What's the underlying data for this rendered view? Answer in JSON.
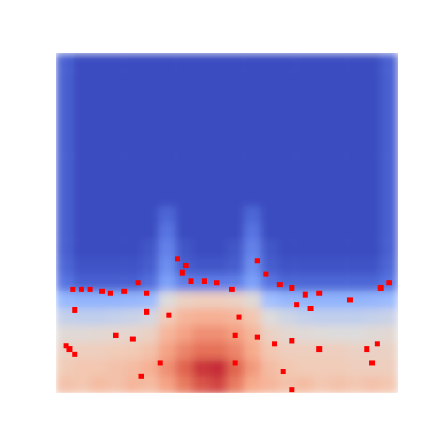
{
  "chart_data": {
    "type": "heatmap",
    "tick_labels": false,
    "xlim": [
      0,
      20
    ],
    "ylim": [
      0,
      20
    ],
    "zlim": [
      0,
      1
    ],
    "cells": [
      [
        0.06,
        0,
        0,
        0,
        0,
        0,
        0,
        0,
        0,
        0,
        0,
        0,
        0,
        0,
        0,
        0,
        0,
        0,
        0,
        0.06
      ],
      [
        0.06,
        0,
        0,
        0,
        0,
        0,
        0,
        0,
        0,
        0,
        0,
        0,
        0,
        0,
        0,
        0,
        0,
        0,
        0,
        0.06
      ],
      [
        0.06,
        0,
        0,
        0,
        0,
        0,
        0,
        0,
        0,
        0,
        0,
        0,
        0,
        0,
        0,
        0,
        0,
        0,
        0,
        0.06
      ],
      [
        0.06,
        0,
        0,
        0,
        0,
        0,
        0,
        0,
        0,
        0,
        0,
        0,
        0,
        0,
        0,
        0,
        0,
        0,
        0,
        0.06
      ],
      [
        0.06,
        0,
        0,
        0,
        0,
        0,
        0,
        0,
        0,
        0,
        0,
        0,
        0,
        0,
        0,
        0,
        0,
        0,
        0,
        0.06
      ],
      [
        0.06,
        0,
        0,
        0,
        0,
        0,
        0,
        0,
        0,
        0,
        0,
        0,
        0,
        0,
        0,
        0,
        0,
        0,
        0,
        0.06
      ],
      [
        0.06,
        0,
        0,
        0,
        0,
        0,
        0,
        0,
        0,
        0,
        0,
        0,
        0,
        0,
        0,
        0,
        0,
        0,
        0,
        0.06
      ],
      [
        0.06,
        0,
        0,
        0,
        0,
        0,
        0,
        0,
        0,
        0,
        0,
        0,
        0,
        0,
        0,
        0,
        0,
        0,
        0,
        0.06
      ],
      [
        0.06,
        0,
        0,
        0,
        0,
        0,
        0,
        0,
        0,
        0,
        0,
        0,
        0,
        0,
        0,
        0,
        0,
        0,
        0,
        0.06
      ],
      [
        0.06,
        0,
        0,
        0,
        0,
        0,
        0.08,
        0,
        0,
        0,
        0,
        0.08,
        0,
        0,
        0,
        0,
        0,
        0,
        0,
        0.06
      ],
      [
        0.06,
        0,
        0,
        0,
        0,
        0,
        0.12,
        0,
        0,
        0,
        0,
        0.12,
        0,
        0,
        0,
        0,
        0,
        0,
        0,
        0.06
      ],
      [
        0.06,
        0,
        0,
        0,
        0,
        0.03,
        0.16,
        0.03,
        0,
        0,
        0.03,
        0.16,
        0.03,
        0,
        0,
        0,
        0,
        0,
        0,
        0.06
      ],
      [
        0.08,
        0.02,
        0.02,
        0.02,
        0.02,
        0.05,
        0.2,
        0.05,
        0.03,
        0.03,
        0.05,
        0.2,
        0.05,
        0.02,
        0.02,
        0.02,
        0.02,
        0.02,
        0.02,
        0.08
      ],
      [
        0.12,
        0.06,
        0.06,
        0.06,
        0.06,
        0.1,
        0.26,
        0.15,
        0.14,
        0.14,
        0.15,
        0.26,
        0.12,
        0.08,
        0.08,
        0.08,
        0.08,
        0.08,
        0.08,
        0.12
      ],
      [
        0.35,
        0.33,
        0.33,
        0.33,
        0.34,
        0.36,
        0.5,
        0.58,
        0.6,
        0.6,
        0.58,
        0.52,
        0.38,
        0.34,
        0.33,
        0.33,
        0.33,
        0.33,
        0.34,
        0.36
      ],
      [
        0.45,
        0.44,
        0.44,
        0.45,
        0.46,
        0.48,
        0.62,
        0.7,
        0.72,
        0.72,
        0.7,
        0.64,
        0.5,
        0.47,
        0.45,
        0.44,
        0.44,
        0.44,
        0.45,
        0.46
      ],
      [
        0.52,
        0.52,
        0.53,
        0.54,
        0.55,
        0.58,
        0.7,
        0.76,
        0.8,
        0.8,
        0.77,
        0.7,
        0.58,
        0.54,
        0.52,
        0.51,
        0.5,
        0.5,
        0.52,
        0.53
      ],
      [
        0.58,
        0.6,
        0.6,
        0.62,
        0.63,
        0.66,
        0.76,
        0.82,
        0.86,
        0.86,
        0.82,
        0.74,
        0.64,
        0.6,
        0.6,
        0.6,
        0.6,
        0.58,
        0.58,
        0.58
      ],
      [
        0.62,
        0.64,
        0.64,
        0.66,
        0.68,
        0.72,
        0.8,
        0.88,
        0.94,
        0.95,
        0.88,
        0.78,
        0.68,
        0.64,
        0.62,
        0.62,
        0.62,
        0.6,
        0.6,
        0.6
      ],
      [
        0.66,
        0.64,
        0.68,
        0.66,
        0.7,
        0.68,
        0.76,
        0.84,
        0.9,
        0.92,
        0.84,
        0.74,
        0.7,
        0.66,
        0.68,
        0.64,
        0.66,
        0.64,
        0.66,
        0.64
      ]
    ],
    "series": [
      {
        "type": "scatter",
        "color": "#ff0000",
        "marker": "square",
        "x": [
          1.0,
          1.5,
          2.0,
          2.7,
          3.2,
          4.0,
          1.1,
          0.6,
          0.8,
          1.1,
          3.5,
          4.5,
          5.3,
          6.6,
          4.8,
          5.3,
          7.1,
          7.4,
          7.6,
          7.9,
          8.7,
          9.4,
          10.3,
          11.8,
          12.3,
          13.1,
          13.8,
          14.6,
          15.4,
          14.1,
          14.9,
          17.2,
          19.0,
          19.5,
          10.7,
          10.5,
          11.8,
          12.8,
          13.8,
          15.4,
          18.2,
          18.8,
          18.5,
          10.5,
          13.3,
          13.8,
          6.1,
          5.0
        ],
        "y": [
          6.1,
          6.1,
          6.1,
          6.0,
          5.9,
          6.0,
          4.9,
          2.8,
          2.6,
          2.3,
          3.4,
          3.2,
          4.8,
          4.6,
          6.5,
          5.9,
          7.9,
          7.1,
          7.5,
          6.6,
          6.6,
          6.5,
          6.1,
          7.8,
          7.0,
          6.4,
          6.2,
          5.8,
          5.9,
          5.2,
          5.0,
          5.5,
          6.2,
          6.5,
          4.5,
          3.4,
          3.3,
          2.9,
          3.1,
          2.6,
          2.6,
          2.9,
          1.8,
          1.8,
          1.3,
          0.2,
          1.8,
          1.0
        ]
      }
    ]
  }
}
